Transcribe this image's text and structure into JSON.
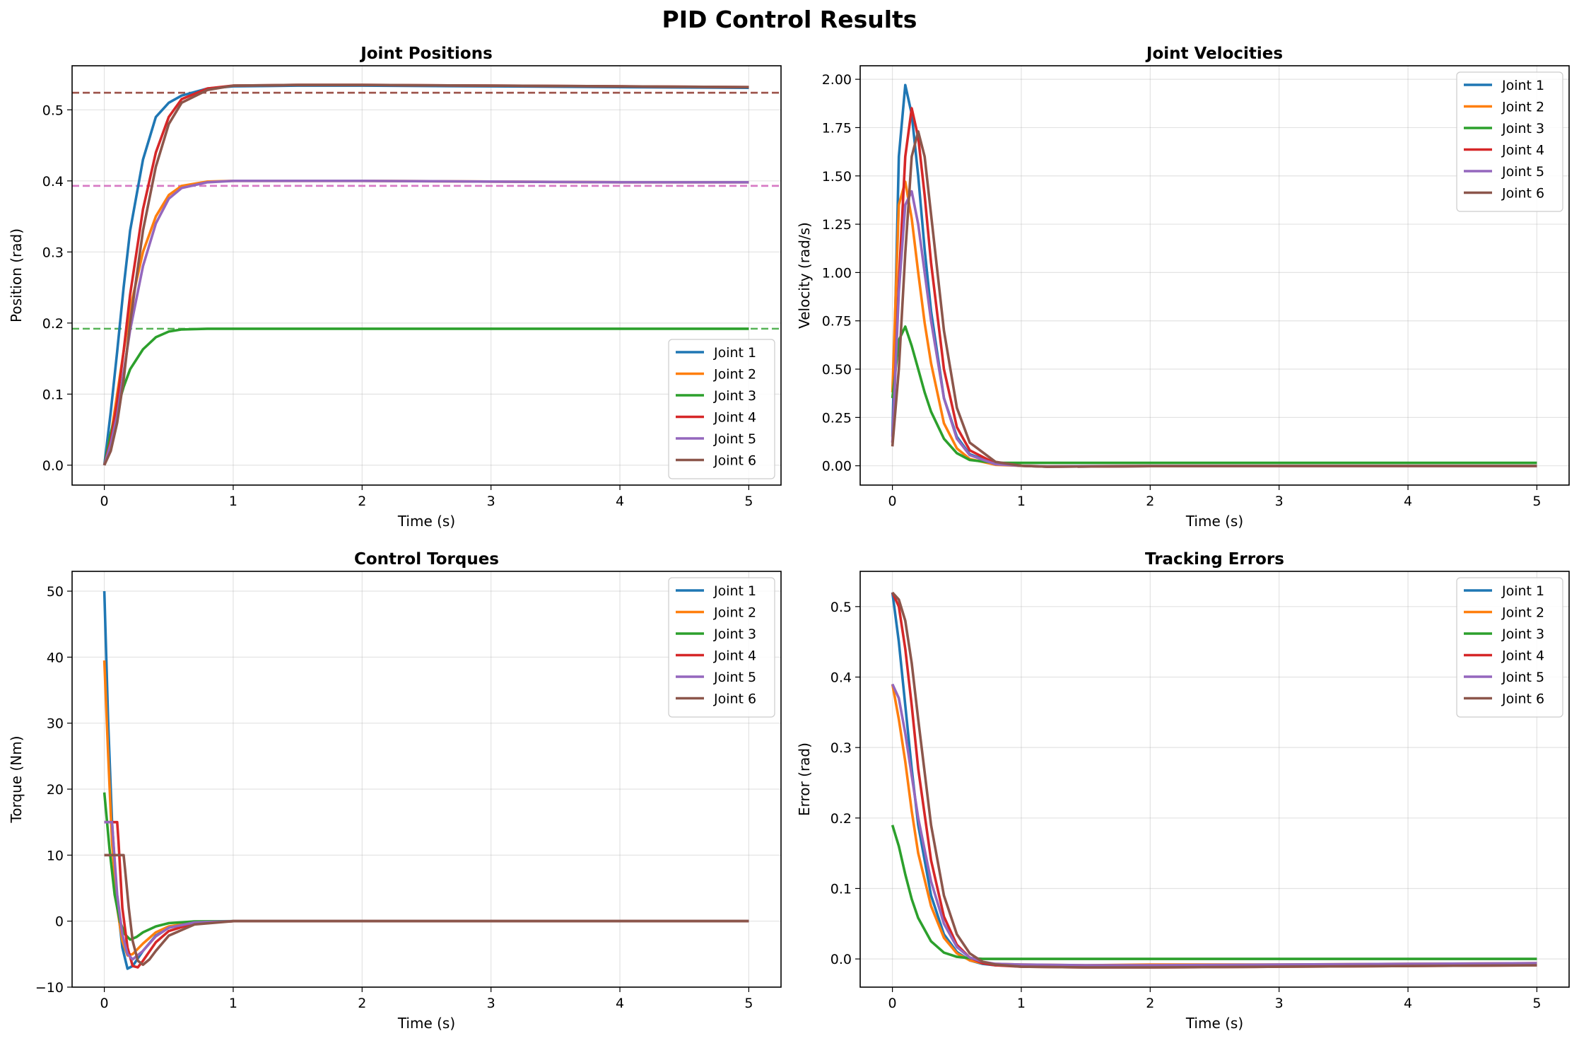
{
  "title": "PID Control Results",
  "series_colors": {
    "Joint 1": "#1f77b4",
    "Joint 2": "#ff7f0e",
    "Joint 3": "#2ca02c",
    "Joint 4": "#d62728",
    "Joint 5": "#9467bd",
    "Joint 6": "#8c564b"
  },
  "chart_data": [
    {
      "title": "Joint Positions",
      "type": "line",
      "xlabel": "Time (s)",
      "ylabel": "Position (rad)",
      "xlim": [
        -0.25,
        5.25
      ],
      "ylim": [
        -0.028,
        0.562
      ],
      "xticks": [
        0,
        1,
        2,
        3,
        4,
        5
      ],
      "xtick_labels": [
        "0",
        "1",
        "2",
        "3",
        "4",
        "5"
      ],
      "yticks": [
        0.0,
        0.1,
        0.2,
        0.3,
        0.4,
        0.5
      ],
      "ytick_labels": [
        "0.0",
        "0.1",
        "0.2",
        "0.3",
        "0.4",
        "0.5"
      ],
      "grid": true,
      "legend": "lower-right",
      "x": [
        0,
        0.05,
        0.1,
        0.15,
        0.2,
        0.3,
        0.4,
        0.5,
        0.6,
        0.8,
        1.0,
        1.5,
        2,
        3,
        4,
        5
      ],
      "series": [
        {
          "name": "Joint 1",
          "color": "#1f77b4",
          "values": [
            0.0,
            0.075,
            0.16,
            0.25,
            0.33,
            0.43,
            0.49,
            0.51,
            0.52,
            0.53,
            0.533,
            0.534,
            0.534,
            0.533,
            0.532,
            0.531
          ]
        },
        {
          "name": "Joint 2",
          "color": "#ff7f0e",
          "values": [
            0.0,
            0.04,
            0.1,
            0.16,
            0.22,
            0.3,
            0.35,
            0.38,
            0.393,
            0.399,
            0.4,
            0.4,
            0.4,
            0.399,
            0.398,
            0.398
          ]
        },
        {
          "name": "Joint 3",
          "color": "#2ca02c",
          "values": [
            0.0,
            0.045,
            0.08,
            0.11,
            0.135,
            0.163,
            0.18,
            0.188,
            0.191,
            0.192,
            0.192,
            0.192,
            0.192,
            0.192,
            0.192,
            0.192
          ]
        },
        {
          "name": "Joint 4",
          "color": "#d62728",
          "values": [
            0.0,
            0.035,
            0.09,
            0.16,
            0.24,
            0.36,
            0.44,
            0.49,
            0.515,
            0.53,
            0.534,
            0.535,
            0.535,
            0.534,
            0.533,
            0.532
          ]
        },
        {
          "name": "Joint 5",
          "color": "#9467bd",
          "values": [
            0.0,
            0.03,
            0.07,
            0.13,
            0.19,
            0.28,
            0.34,
            0.375,
            0.39,
            0.398,
            0.4,
            0.4,
            0.4,
            0.399,
            0.398,
            0.398
          ]
        },
        {
          "name": "Joint 6",
          "color": "#8c564b",
          "values": [
            0.0,
            0.02,
            0.06,
            0.12,
            0.2,
            0.33,
            0.42,
            0.48,
            0.51,
            0.528,
            0.534,
            0.535,
            0.535,
            0.534,
            0.533,
            0.532
          ]
        }
      ],
      "reference_lines": [
        {
          "y": 0.524,
          "color": "#d62728"
        },
        {
          "y": 0.524,
          "color": "#8c564b"
        },
        {
          "y": 0.393,
          "color": "#9467bd"
        },
        {
          "y": 0.393,
          "color": "#e377c2"
        },
        {
          "y": 0.192,
          "color": "#2ca02c"
        }
      ]
    },
    {
      "title": "Joint Velocities",
      "type": "line",
      "xlabel": "Time (s)",
      "ylabel": "Velocity (rad/s)",
      "xlim": [
        -0.25,
        5.25
      ],
      "ylim": [
        -0.1,
        2.07
      ],
      "xticks": [
        0,
        1,
        2,
        3,
        4,
        5
      ],
      "xtick_labels": [
        "0",
        "1",
        "2",
        "3",
        "4",
        "5"
      ],
      "yticks": [
        0.0,
        0.25,
        0.5,
        0.75,
        1.0,
        1.25,
        1.5,
        1.75,
        2.0
      ],
      "ytick_labels": [
        "0.00",
        "0.25",
        "0.50",
        "0.75",
        "1.00",
        "1.25",
        "1.50",
        "1.75",
        "2.00"
      ],
      "grid": true,
      "legend": "top-right",
      "x": [
        0,
        0.05,
        0.1,
        0.15,
        0.2,
        0.25,
        0.3,
        0.4,
        0.5,
        0.6,
        0.8,
        1.0,
        1.2,
        2,
        3,
        4,
        5
      ],
      "series": [
        {
          "name": "Joint 1",
          "color": "#1f77b4",
          "values": [
            0.15,
            1.6,
            1.97,
            1.82,
            1.5,
            1.12,
            0.8,
            0.35,
            0.15,
            0.06,
            0.01,
            0.0,
            -0.005,
            -0.002,
            -0.001,
            -0.001,
            -0.001
          ]
        },
        {
          "name": "Joint 2",
          "color": "#ff7f0e",
          "values": [
            0.38,
            1.35,
            1.47,
            1.28,
            1.0,
            0.74,
            0.53,
            0.22,
            0.09,
            0.035,
            0.005,
            0.0,
            -0.003,
            -0.001,
            -0.001,
            -0.001,
            -0.001
          ]
        },
        {
          "name": "Joint 3",
          "color": "#2ca02c",
          "values": [
            0.35,
            0.65,
            0.72,
            0.62,
            0.5,
            0.38,
            0.28,
            0.14,
            0.065,
            0.03,
            0.015,
            0.015,
            0.015,
            0.015,
            0.015,
            0.015,
            0.015
          ]
        },
        {
          "name": "Joint 4",
          "color": "#d62728",
          "values": [
            0.12,
            0.95,
            1.6,
            1.85,
            1.7,
            1.4,
            1.05,
            0.5,
            0.2,
            0.08,
            0.012,
            0.0,
            -0.005,
            -0.002,
            -0.001,
            -0.001,
            -0.001
          ]
        },
        {
          "name": "Joint 5",
          "color": "#9467bd",
          "values": [
            0.12,
            0.9,
            1.35,
            1.42,
            1.25,
            1.0,
            0.75,
            0.35,
            0.14,
            0.055,
            0.008,
            0.0,
            -0.003,
            -0.001,
            -0.001,
            -0.001,
            -0.001
          ]
        },
        {
          "name": "Joint 6",
          "color": "#8c564b",
          "values": [
            0.1,
            0.5,
            1.1,
            1.6,
            1.73,
            1.6,
            1.3,
            0.7,
            0.3,
            0.12,
            0.02,
            0.0,
            -0.005,
            -0.002,
            -0.001,
            -0.001,
            -0.001
          ]
        }
      ]
    },
    {
      "title": "Control Torques",
      "type": "line",
      "xlabel": "Time (s)",
      "ylabel": "Torque (Nm)",
      "xlim": [
        -0.25,
        5.25
      ],
      "ylim": [
        -10.0,
        53.0
      ],
      "xticks": [
        0,
        1,
        2,
        3,
        4,
        5
      ],
      "xtick_labels": [
        "0",
        "1",
        "2",
        "3",
        "4",
        "5"
      ],
      "yticks": [
        -10,
        0,
        10,
        20,
        30,
        40,
        50
      ],
      "ytick_labels": [
        "−10",
        "0",
        "10",
        "20",
        "30",
        "40",
        "50"
      ],
      "grid": true,
      "legend": "top-right",
      "series": [
        {
          "name": "Joint 1",
          "color": "#1f77b4",
          "x": [
            0,
            0.03,
            0.06,
            0.1,
            0.14,
            0.18,
            0.22,
            0.3,
            0.4,
            0.5,
            0.7,
            1.0,
            2,
            5
          ],
          "values": [
            50,
            30,
            15,
            3,
            -4,
            -7.2,
            -6.8,
            -4.5,
            -2.2,
            -1.0,
            -0.2,
            0.0,
            0.0,
            0.0
          ]
        },
        {
          "name": "Joint 2",
          "color": "#ff7f0e",
          "x": [
            0,
            0.03,
            0.06,
            0.1,
            0.14,
            0.18,
            0.22,
            0.3,
            0.4,
            0.5,
            0.7,
            1.0,
            2,
            5
          ],
          "values": [
            39.5,
            25,
            12,
            2,
            -3,
            -5.2,
            -5.0,
            -3.4,
            -1.7,
            -0.8,
            -0.2,
            0.0,
            0.0,
            0.0
          ]
        },
        {
          "name": "Joint 3",
          "color": "#2ca02c",
          "x": [
            0,
            0.04,
            0.08,
            0.12,
            0.16,
            0.2,
            0.25,
            0.3,
            0.4,
            0.5,
            0.7,
            1.0,
            2,
            5
          ],
          "values": [
            19.5,
            11,
            4,
            0,
            -2.0,
            -2.8,
            -2.4,
            -1.7,
            -0.8,
            -0.3,
            -0.05,
            0.0,
            0.0,
            0.0
          ]
        },
        {
          "name": "Joint 4",
          "color": "#d62728",
          "x": [
            0,
            0.05,
            0.1,
            0.11,
            0.14,
            0.18,
            0.22,
            0.26,
            0.3,
            0.4,
            0.5,
            0.7,
            1.0,
            2,
            5
          ],
          "values": [
            15,
            15,
            15,
            12,
            2,
            -4,
            -6.8,
            -7.0,
            -6.0,
            -3.2,
            -1.5,
            -0.3,
            0.0,
            0.0,
            0.0
          ]
        },
        {
          "name": "Joint 5",
          "color": "#9467bd",
          "x": [
            0,
            0.03,
            0.06,
            0.07,
            0.1,
            0.14,
            0.18,
            0.22,
            0.3,
            0.4,
            0.5,
            0.7,
            1.0,
            2,
            5
          ],
          "values": [
            15,
            15,
            15,
            12,
            4,
            -2,
            -5,
            -5.8,
            -4.5,
            -2.3,
            -1.0,
            -0.2,
            0.0,
            0.0,
            0.0
          ]
        },
        {
          "name": "Joint 6",
          "color": "#8c564b",
          "x": [
            0,
            0.08,
            0.15,
            0.16,
            0.19,
            0.22,
            0.26,
            0.3,
            0.35,
            0.4,
            0.5,
            0.7,
            1.0,
            2,
            5
          ],
          "values": [
            10,
            10,
            10,
            8,
            2,
            -3,
            -6.0,
            -6.6,
            -5.8,
            -4.5,
            -2.2,
            -0.5,
            0.0,
            0.0,
            0.0
          ]
        }
      ]
    },
    {
      "title": "Tracking Errors",
      "type": "line",
      "xlabel": "Time (s)",
      "ylabel": "Error (rad)",
      "xlim": [
        -0.25,
        5.25
      ],
      "ylim": [
        -0.04,
        0.55
      ],
      "xticks": [
        0,
        1,
        2,
        3,
        4,
        5
      ],
      "xtick_labels": [
        "0",
        "1",
        "2",
        "3",
        "4",
        "5"
      ],
      "yticks": [
        0.0,
        0.1,
        0.2,
        0.3,
        0.4,
        0.5
      ],
      "ytick_labels": [
        "0.0",
        "0.1",
        "0.2",
        "0.3",
        "0.4",
        "0.5"
      ],
      "grid": true,
      "legend": "top-right",
      "x": [
        0,
        0.05,
        0.1,
        0.15,
        0.2,
        0.3,
        0.4,
        0.5,
        0.6,
        0.7,
        0.8,
        1.0,
        1.5,
        2,
        3,
        4,
        5
      ],
      "series": [
        {
          "name": "Joint 1",
          "color": "#1f77b4",
          "values": [
            0.52,
            0.45,
            0.36,
            0.27,
            0.19,
            0.09,
            0.035,
            0.01,
            -0.002,
            -0.007,
            -0.009,
            -0.01,
            -0.011,
            -0.011,
            -0.01,
            -0.009,
            -0.008
          ]
        },
        {
          "name": "Joint 2",
          "color": "#ff7f0e",
          "values": [
            0.39,
            0.34,
            0.28,
            0.21,
            0.15,
            0.075,
            0.03,
            0.008,
            -0.002,
            -0.006,
            -0.007,
            -0.008,
            -0.009,
            -0.008,
            -0.008,
            -0.007,
            -0.006
          ]
        },
        {
          "name": "Joint 3",
          "color": "#2ca02c",
          "values": [
            0.19,
            0.16,
            0.12,
            0.085,
            0.058,
            0.025,
            0.009,
            0.003,
            0.001,
            0.0,
            0.0,
            0.0,
            0.0,
            0.0,
            0.0,
            0.0,
            0.0
          ]
        },
        {
          "name": "Joint 4",
          "color": "#d62728",
          "values": [
            0.52,
            0.5,
            0.44,
            0.36,
            0.27,
            0.14,
            0.06,
            0.02,
            0.002,
            -0.006,
            -0.009,
            -0.011,
            -0.012,
            -0.012,
            -0.011,
            -0.01,
            -0.009
          ]
        },
        {
          "name": "Joint 5",
          "color": "#9467bd",
          "values": [
            0.39,
            0.37,
            0.32,
            0.26,
            0.2,
            0.11,
            0.05,
            0.017,
            0.002,
            -0.004,
            -0.007,
            -0.008,
            -0.009,
            -0.009,
            -0.008,
            -0.007,
            -0.006
          ]
        },
        {
          "name": "Joint 6",
          "color": "#8c564b",
          "values": [
            0.52,
            0.51,
            0.48,
            0.42,
            0.34,
            0.19,
            0.09,
            0.035,
            0.008,
            -0.004,
            -0.008,
            -0.011,
            -0.012,
            -0.012,
            -0.011,
            -0.01,
            -0.009
          ]
        }
      ]
    }
  ]
}
